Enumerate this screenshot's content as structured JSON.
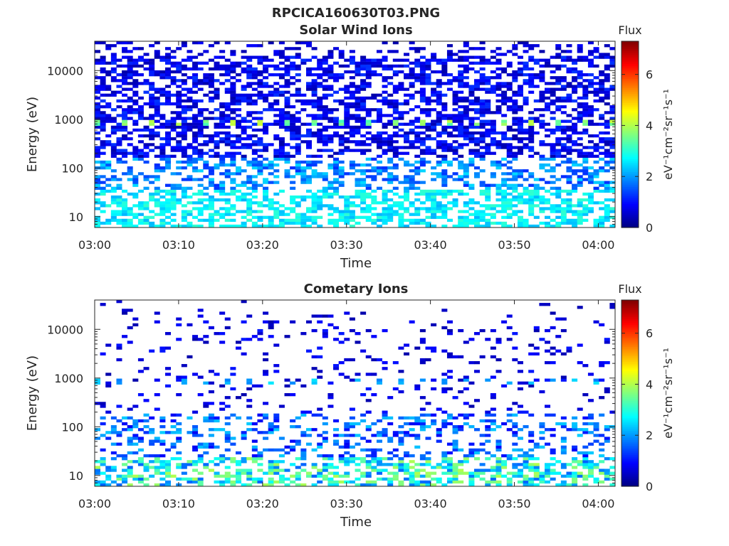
{
  "figure": {
    "title": "RPCICA160630T03.PNG"
  },
  "colorbar": {
    "label": "Flux",
    "unit_html": "eV⁻¹cm⁻²sr⁻¹s⁻¹",
    "ticks": [
      "0",
      "2",
      "4",
      "6"
    ],
    "range": [
      0,
      7.3
    ],
    "colormap": "jet"
  },
  "chart_data": [
    {
      "type": "heatmap",
      "title": "Solar Wind Ions",
      "xlabel": "Time",
      "ylabel": "Energy (eV)",
      "xlim": [
        "03:00",
        "04:02"
      ],
      "xticks": [
        "03:00",
        "03:10",
        "03:20",
        "03:30",
        "03:40",
        "03:50",
        "04:00"
      ],
      "yscale": "log",
      "ylim": [
        6,
        40000
      ],
      "yticks": [
        "10",
        "100",
        "1000",
        "10000"
      ],
      "zlabel": "Flux",
      "zlim": [
        0,
        7.3
      ],
      "grid": false
    },
    {
      "type": "heatmap",
      "title": "Cometary Ions",
      "xlabel": "Time",
      "ylabel": "Energy (eV)",
      "xlim": [
        "03:00",
        "04:02"
      ],
      "xticks": [
        "03:00",
        "03:10",
        "03:20",
        "03:30",
        "03:40",
        "03:50",
        "04:00"
      ],
      "yscale": "log",
      "ylim": [
        6,
        40000
      ],
      "yticks": [
        "10",
        "100",
        "1000",
        "10000"
      ],
      "zlabel": "Flux",
      "zlim": [
        0,
        7.3
      ],
      "grid": false
    }
  ]
}
